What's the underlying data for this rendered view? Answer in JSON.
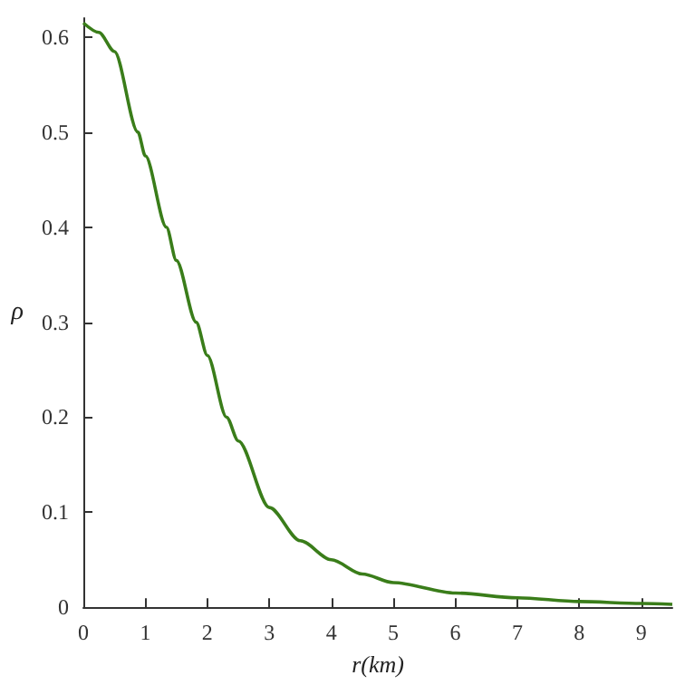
{
  "chart_data": {
    "type": "line",
    "xlabel": "r(km)",
    "ylabel": "ρ",
    "x": [
      0,
      0.25,
      0.5,
      0.88,
      1,
      1.34,
      1.5,
      1.82,
      2,
      2.31,
      2.5,
      3,
      3.5,
      4,
      4.5,
      5,
      6,
      7,
      8,
      9,
      9.5
    ],
    "series": [
      {
        "color": "#3a7d1a",
        "values": [
          0.615,
          0.605,
          0.585,
          0.5,
          0.475,
          0.4,
          0.365,
          0.3,
          0.265,
          0.2,
          0.175,
          0.105,
          0.07,
          0.05,
          0.035,
          0.026,
          0.015,
          0.01,
          0.006,
          0.004,
          0.003
        ]
      }
    ],
    "xlim": [
      0,
      9.5
    ],
    "xticks": [
      0,
      1,
      2,
      3,
      4,
      5,
      6,
      7,
      8,
      9
    ],
    "ylim": [
      0,
      0.62
    ],
    "yticks": [
      0,
      0.1,
      0.2,
      0.3,
      0.4,
      0.5,
      0.6
    ],
    "grid": false,
    "marker": "none",
    "line_style": "solid"
  }
}
